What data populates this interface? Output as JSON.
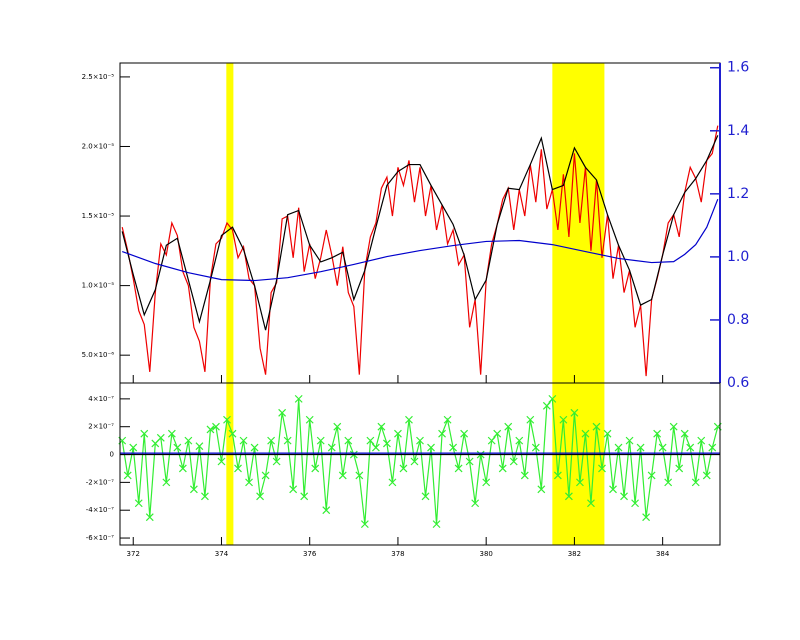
{
  "chart_data": [
    {
      "type": "line",
      "xlim": [
        371.7,
        385.3
      ],
      "ylim": [
        3e-06,
        2.6e-05
      ],
      "y2lim": [
        0.6,
        1.615
      ],
      "yticks": [
        {
          "value": 5e-06,
          "label": "5.0×10⁻⁶"
        },
        {
          "value": 1e-05,
          "label": "1.0×10⁻⁵"
        },
        {
          "value": 1.5e-05,
          "label": "1.5×10⁻⁵"
        },
        {
          "value": 2e-05,
          "label": "2.0×10⁻⁵"
        },
        {
          "value": 2.5e-05,
          "label": "2.5×10⁻⁵"
        }
      ],
      "y2ticks": [
        0.6,
        0.8,
        {
          "value": 1,
          "label": "1.0"
        },
        1.2,
        1.4,
        1.6
      ],
      "y2color": "#2020d0",
      "highlights": [
        [
          374.11,
          374.27
        ],
        [
          381.5,
          382.68
        ]
      ],
      "highlight_color": "#ffff00",
      "series": [
        {
          "color": "#ee0000",
          "x": [
            371.75,
            371.875,
            372,
            372.125,
            372.25,
            372.375,
            372.5,
            372.625,
            372.75,
            372.875,
            373,
            373.125,
            373.25,
            373.375,
            373.5,
            373.625,
            373.75,
            373.875,
            374,
            374.125,
            374.25,
            374.375,
            374.5,
            374.625,
            374.75,
            374.875,
            375,
            375.125,
            375.25,
            375.375,
            375.5,
            375.625,
            375.75,
            375.875,
            376,
            376.125,
            376.25,
            376.375,
            376.5,
            376.625,
            376.75,
            376.875,
            377,
            377.125,
            377.25,
            377.375,
            377.5,
            377.625,
            377.75,
            377.875,
            378,
            378.125,
            378.25,
            378.375,
            378.5,
            378.625,
            378.75,
            378.875,
            379,
            379.125,
            379.25,
            379.375,
            379.5,
            379.625,
            379.75,
            379.875,
            380,
            380.125,
            380.25,
            380.375,
            380.5,
            380.625,
            380.75,
            380.875,
            381,
            381.125,
            381.25,
            381.375,
            381.5,
            381.625,
            381.75,
            381.875,
            382,
            382.125,
            382.25,
            382.375,
            382.5,
            382.625,
            382.75,
            382.875,
            383,
            383.125,
            383.25,
            383.375,
            383.5,
            383.625,
            383.75,
            383.875,
            384,
            384.125,
            384.25,
            384.375,
            384.5,
            384.625,
            384.75,
            384.875,
            385,
            385.125,
            385.25
          ],
          "values": [
            1.42e-05,
            1.25e-05,
            1.05e-05,
            8.2e-06,
            7.2e-06,
            3.8e-06,
            9.5e-06,
            1.3e-05,
            1.22e-05,
            1.45e-05,
            1.36e-05,
            1.1e-05,
            1e-05,
            7e-06,
            6e-06,
            3.8e-06,
            1.05e-05,
            1.3e-05,
            1.34e-05,
            1.45e-05,
            1.4e-05,
            1.2e-05,
            1.28e-05,
            1.05e-05,
            1e-05,
            5.5e-06,
            3.6e-06,
            9.5e-06,
            1.02e-05,
            1.48e-05,
            1.5e-05,
            1.2e-05,
            1.56e-05,
            1.1e-05,
            1.3e-05,
            1.05e-05,
            1.2e-05,
            1.4e-05,
            1.22e-05,
            1e-05,
            1.28e-05,
            9.5e-06,
            8.5e-06,
            3.6e-06,
            1.12e-05,
            1.35e-05,
            1.45e-05,
            1.7e-05,
            1.78e-05,
            1.5e-05,
            1.85e-05,
            1.72e-05,
            1.9e-05,
            1.6e-05,
            1.85e-05,
            1.5e-05,
            1.72e-05,
            1.4e-05,
            1.58e-05,
            1.3e-05,
            1.4e-05,
            1.15e-05,
            1.22e-05,
            7e-06,
            9e-06,
            3.6e-06,
            1.04e-05,
            1.3e-05,
            1.44e-05,
            1.62e-05,
            1.7e-05,
            1.4e-05,
            1.69e-05,
            1.5e-05,
            1.87e-05,
            1.6e-05,
            1.98e-05,
            1.55e-05,
            1.69e-05,
            1.4e-05,
            1.8e-05,
            1.35e-05,
            1.95e-05,
            1.45e-05,
            1.85e-05,
            1.25e-05,
            1.76e-05,
            1.2e-05,
            1.51e-05,
            1.05e-05,
            1.29e-05,
            9.5e-06,
            1.11e-05,
            7e-06,
            8.6e-06,
            3.5e-06,
            9e-06,
            1.05e-05,
            1.22e-05,
            1.45e-05,
            1.51e-05,
            1.35e-05,
            1.67e-05,
            1.85e-05,
            1.77e-05,
            1.6e-05,
            1.9e-05,
            1.95e-05,
            2.15e-05
          ]
        },
        {
          "color": "#000000",
          "x": [
            371.75,
            372,
            372.25,
            372.5,
            372.75,
            373,
            373.25,
            373.5,
            373.75,
            374,
            374.25,
            374.5,
            374.75,
            375,
            375.25,
            375.5,
            375.75,
            376,
            376.25,
            376.5,
            376.75,
            377,
            377.25,
            377.5,
            377.75,
            378,
            378.25,
            378.5,
            378.75,
            379,
            379.25,
            379.5,
            379.75,
            380,
            380.25,
            380.5,
            380.75,
            381,
            381.25,
            381.5,
            381.75,
            382,
            382.25,
            382.5,
            382.75,
            383,
            383.25,
            383.5,
            383.75,
            384,
            384.25,
            384.5,
            384.75,
            385,
            385.25
          ],
          "values": [
            1.39e-05,
            1.08e-05,
            7.9e-06,
            9.7e-06,
            1.29e-05,
            1.34e-05,
            1.04e-05,
            7.4e-06,
            1.04e-05,
            1.36e-05,
            1.42e-05,
            1.26e-05,
            1e-05,
            6.8e-06,
            1.04e-05,
            1.51e-05,
            1.54e-05,
            1.29e-05,
            1.17e-05,
            1.2e-05,
            1.24e-05,
            9e-06,
            1.11e-05,
            1.42e-05,
            1.72e-05,
            1.82e-05,
            1.87e-05,
            1.87e-05,
            1.72e-05,
            1.58e-05,
            1.44e-05,
            1.22e-05,
            9e-06,
            1.04e-05,
            1.44e-05,
            1.7e-05,
            1.69e-05,
            1.87e-05,
            2.06e-05,
            1.69e-05,
            1.72e-05,
            1.99e-05,
            1.85e-05,
            1.76e-05,
            1.51e-05,
            1.29e-05,
            1.11e-05,
            8.6e-06,
            9e-06,
            1.22e-05,
            1.51e-05,
            1.67e-05,
            1.77e-05,
            1.9e-05,
            2.08e-05
          ]
        },
        {
          "color": "#0000cc",
          "axis": "y2",
          "x": [
            371.75,
            372.5,
            373.25,
            374,
            374.75,
            375.5,
            376.25,
            377,
            377.75,
            378.5,
            379.25,
            380,
            380.75,
            381.5,
            382.25,
            383,
            383.75,
            384.25,
            384.5,
            384.75,
            385,
            385.25
          ],
          "values": [
            1.017,
            0.979,
            0.95,
            0.928,
            0.925,
            0.934,
            0.953,
            0.976,
            1.001,
            1.02,
            1.036,
            1.049,
            1.052,
            1.039,
            1.017,
            0.995,
            0.982,
            0.985,
            1.008,
            1.039,
            1.094,
            1.183
          ]
        }
      ]
    },
    {
      "type": "line",
      "xlim": [
        371.7,
        385.3
      ],
      "ylim": [
        -6.5e-07,
        5.14e-07
      ],
      "xticks": [
        372,
        374,
        376,
        378,
        380,
        382,
        384
      ],
      "yticks": [
        {
          "value": -6e-07,
          "label": "-6×10⁻⁷"
        },
        {
          "value": -4e-07,
          "label": "-4×10⁻⁷"
        },
        {
          "value": -2e-07,
          "label": "-2×10⁻⁷"
        },
        0,
        {
          "value": 2e-07,
          "label": "2×10⁻⁷"
        },
        {
          "value": 4e-07,
          "label": "4×10⁻⁷"
        }
      ],
      "series": [
        {
          "color": "#33ee33",
          "marker": "x",
          "x": [
            371.75,
            371.875,
            372,
            372.125,
            372.25,
            372.375,
            372.5,
            372.625,
            372.75,
            372.875,
            373,
            373.125,
            373.25,
            373.375,
            373.5,
            373.625,
            373.75,
            373.875,
            374,
            374.125,
            374.25,
            374.375,
            374.5,
            374.625,
            374.75,
            374.875,
            375,
            375.125,
            375.25,
            375.375,
            375.5,
            375.625,
            375.75,
            375.875,
            376,
            376.125,
            376.25,
            376.375,
            376.5,
            376.625,
            376.75,
            376.875,
            377,
            377.125,
            377.25,
            377.375,
            377.5,
            377.625,
            377.75,
            377.875,
            378,
            378.125,
            378.25,
            378.375,
            378.5,
            378.625,
            378.75,
            378.875,
            379,
            379.125,
            379.25,
            379.375,
            379.5,
            379.625,
            379.75,
            379.875,
            380,
            380.125,
            380.25,
            380.375,
            380.5,
            380.625,
            380.75,
            380.875,
            381,
            381.125,
            381.25,
            381.375,
            381.5,
            381.625,
            381.75,
            381.875,
            382,
            382.125,
            382.25,
            382.375,
            382.5,
            382.625,
            382.75,
            382.875,
            383,
            383.125,
            383.25,
            383.375,
            383.5,
            383.625,
            383.75,
            383.875,
            384,
            384.125,
            384.25,
            384.375,
            384.5,
            384.625,
            384.75,
            384.875,
            385,
            385.125,
            385.25
          ],
          "values": [
            1e-07,
            -1.5e-07,
            5e-08,
            -3.5e-07,
            1.5e-07,
            -4.5e-07,
            8e-08,
            1.2e-07,
            -2e-07,
            1.5e-07,
            5e-08,
            -1e-07,
            1e-07,
            -2.5e-07,
            6e-08,
            -3e-07,
            1.8e-07,
            2e-07,
            -5e-08,
            2.5e-07,
            1.5e-07,
            -1e-07,
            1e-07,
            -2e-07,
            5e-08,
            -3e-07,
            -1.5e-07,
            1e-07,
            -5e-08,
            3e-07,
            1e-07,
            -2.5e-07,
            4e-07,
            -3e-07,
            2.5e-07,
            -1e-07,
            1e-07,
            -4e-07,
            5e-08,
            2e-07,
            -1.5e-07,
            1e-07,
            0,
            -1.5e-07,
            -5e-07,
            1e-07,
            5e-08,
            2e-07,
            8e-08,
            -2e-07,
            1.5e-07,
            -1e-07,
            2.5e-07,
            -5e-08,
            1e-07,
            -3e-07,
            5e-08,
            -5e-07,
            1.5e-07,
            2.5e-07,
            5e-08,
            -1e-07,
            1.5e-07,
            -5e-08,
            -3.5e-07,
            0,
            -2e-07,
            1e-07,
            1.5e-07,
            -1e-07,
            2e-07,
            -5e-08,
            1e-07,
            -1.5e-07,
            2.5e-07,
            5e-08,
            -2.5e-07,
            3.5e-07,
            4e-07,
            -1.5e-07,
            2.5e-07,
            -3e-07,
            3e-07,
            -2e-07,
            1.5e-07,
            -3.5e-07,
            2e-07,
            -1e-07,
            1.5e-07,
            -2.5e-07,
            5e-08,
            -3e-07,
            1e-07,
            -3.5e-07,
            5e-08,
            -4.5e-07,
            -1.5e-07,
            1.5e-07,
            5e-08,
            -2e-07,
            2e-07,
            -1e-07,
            1.5e-07,
            5e-08,
            -2e-07,
            1e-07,
            -1.5e-07,
            5e-08,
            2e-07
          ]
        },
        {
          "color": "#000000",
          "x": [
            371.7,
            385.3
          ],
          "values": [
            0,
            0
          ]
        },
        {
          "color": "#0000cc",
          "x": [
            371.7,
            385.3
          ],
          "values": [
            1e-08,
            1e-08
          ]
        }
      ]
    }
  ]
}
